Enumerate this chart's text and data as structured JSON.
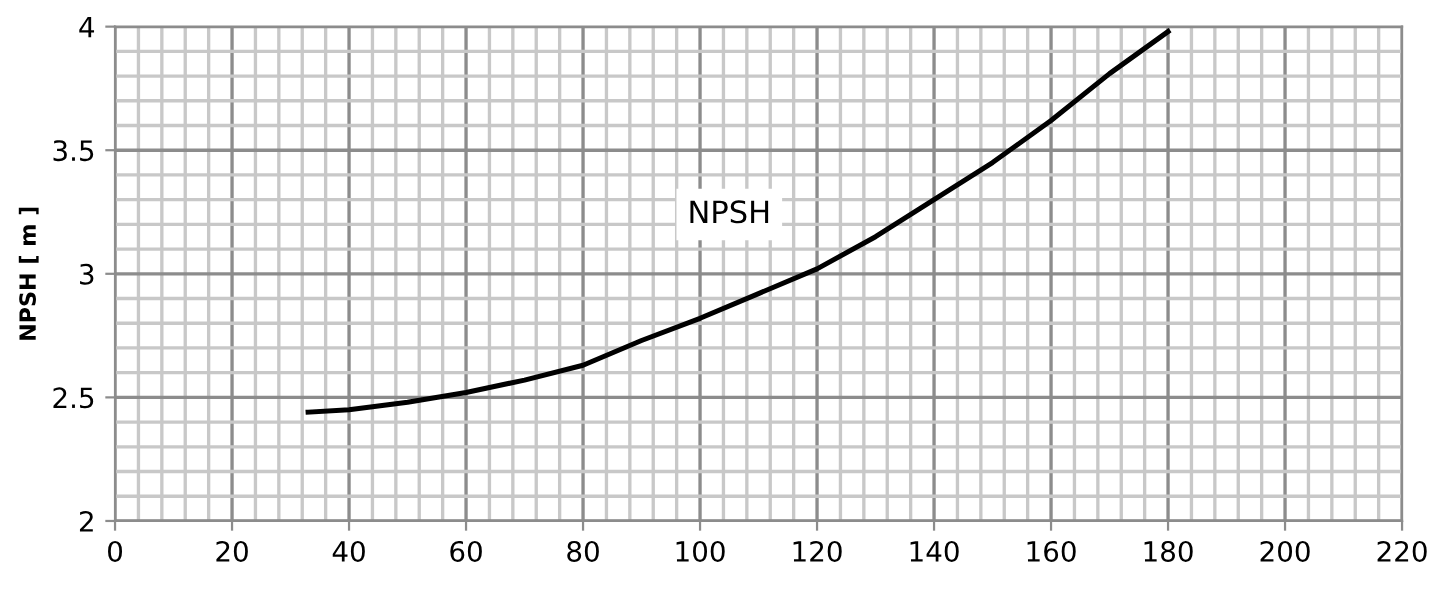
{
  "chart_data": {
    "type": "line",
    "ylabel": "NPSH [ m ]",
    "series": [
      {
        "name": "NPSH",
        "color": "#000000",
        "x": [
          33,
          40,
          50,
          60,
          70,
          80,
          90,
          100,
          110,
          120,
          130,
          140,
          150,
          160,
          170,
          180
        ],
        "values": [
          2.44,
          2.45,
          2.48,
          2.52,
          2.57,
          2.63,
          2.73,
          2.82,
          2.92,
          3.02,
          3.15,
          3.3,
          3.45,
          3.62,
          3.81,
          3.98
        ]
      }
    ],
    "xlim": [
      0,
      220
    ],
    "xticks": [
      0,
      20,
      40,
      60,
      80,
      100,
      120,
      140,
      160,
      180,
      200,
      220
    ],
    "ylim": [
      2,
      4
    ],
    "yticks": [
      2,
      2.5,
      3,
      3.5,
      4
    ],
    "grid": true,
    "marker": "none",
    "line_style": "solid"
  }
}
